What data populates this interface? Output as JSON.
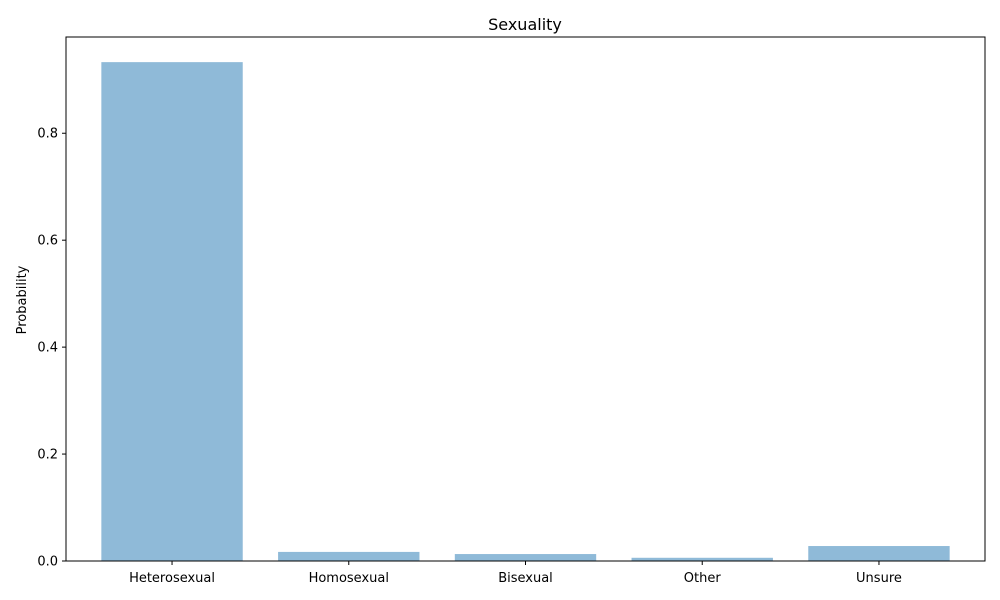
{
  "chart_data": {
    "type": "bar",
    "title": "Sexuality",
    "xlabel": "",
    "ylabel": "Probability",
    "categories": [
      "Heterosexual",
      "Homosexual",
      "Bisexual",
      "Other",
      "Unsure"
    ],
    "values": [
      0.933,
      0.017,
      0.013,
      0.006,
      0.028
    ],
    "ylim": [
      0,
      0.98
    ],
    "yticks": [
      0.0,
      0.2,
      0.4,
      0.6,
      0.8
    ],
    "ytick_labels": [
      "0.0",
      "0.2",
      "0.4",
      "0.6",
      "0.8"
    ],
    "bar_color": "#8fbad8",
    "grid": false,
    "legend": "none"
  }
}
